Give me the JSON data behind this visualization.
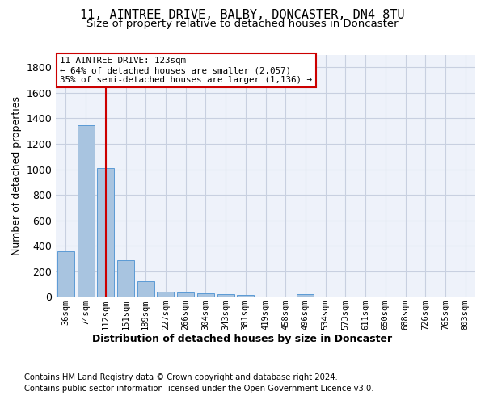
{
  "title": "11, AINTREE DRIVE, BALBY, DONCASTER, DN4 8TU",
  "subtitle": "Size of property relative to detached houses in Doncaster",
  "xlabel": "Distribution of detached houses by size in Doncaster",
  "ylabel": "Number of detached properties",
  "categories": [
    "36sqm",
    "74sqm",
    "112sqm",
    "151sqm",
    "189sqm",
    "227sqm",
    "266sqm",
    "304sqm",
    "343sqm",
    "381sqm",
    "419sqm",
    "458sqm",
    "496sqm",
    "534sqm",
    "573sqm",
    "611sqm",
    "650sqm",
    "688sqm",
    "726sqm",
    "765sqm",
    "803sqm"
  ],
  "values": [
    355,
    1345,
    1010,
    290,
    125,
    42,
    35,
    28,
    20,
    15,
    0,
    0,
    20,
    0,
    0,
    0,
    0,
    0,
    0,
    0,
    0
  ],
  "bar_color": "#a8c4e0",
  "bar_edge_color": "#5b9bd5",
  "vline_x": 2,
  "vline_color": "#cc0000",
  "annotation_line1": "11 AINTREE DRIVE: 123sqm",
  "annotation_line2": "← 64% of detached houses are smaller (2,057)",
  "annotation_line3": "35% of semi-detached houses are larger (1,136) →",
  "annotation_box_color": "#ffffff",
  "annotation_box_edge": "#cc0000",
  "ylim": [
    0,
    1900
  ],
  "yticks": [
    0,
    200,
    400,
    600,
    800,
    1000,
    1200,
    1400,
    1600,
    1800
  ],
  "bg_color": "#eef2fa",
  "footnote1": "Contains HM Land Registry data © Crown copyright and database right 2024.",
  "footnote2": "Contains public sector information licensed under the Open Government Licence v3.0."
}
